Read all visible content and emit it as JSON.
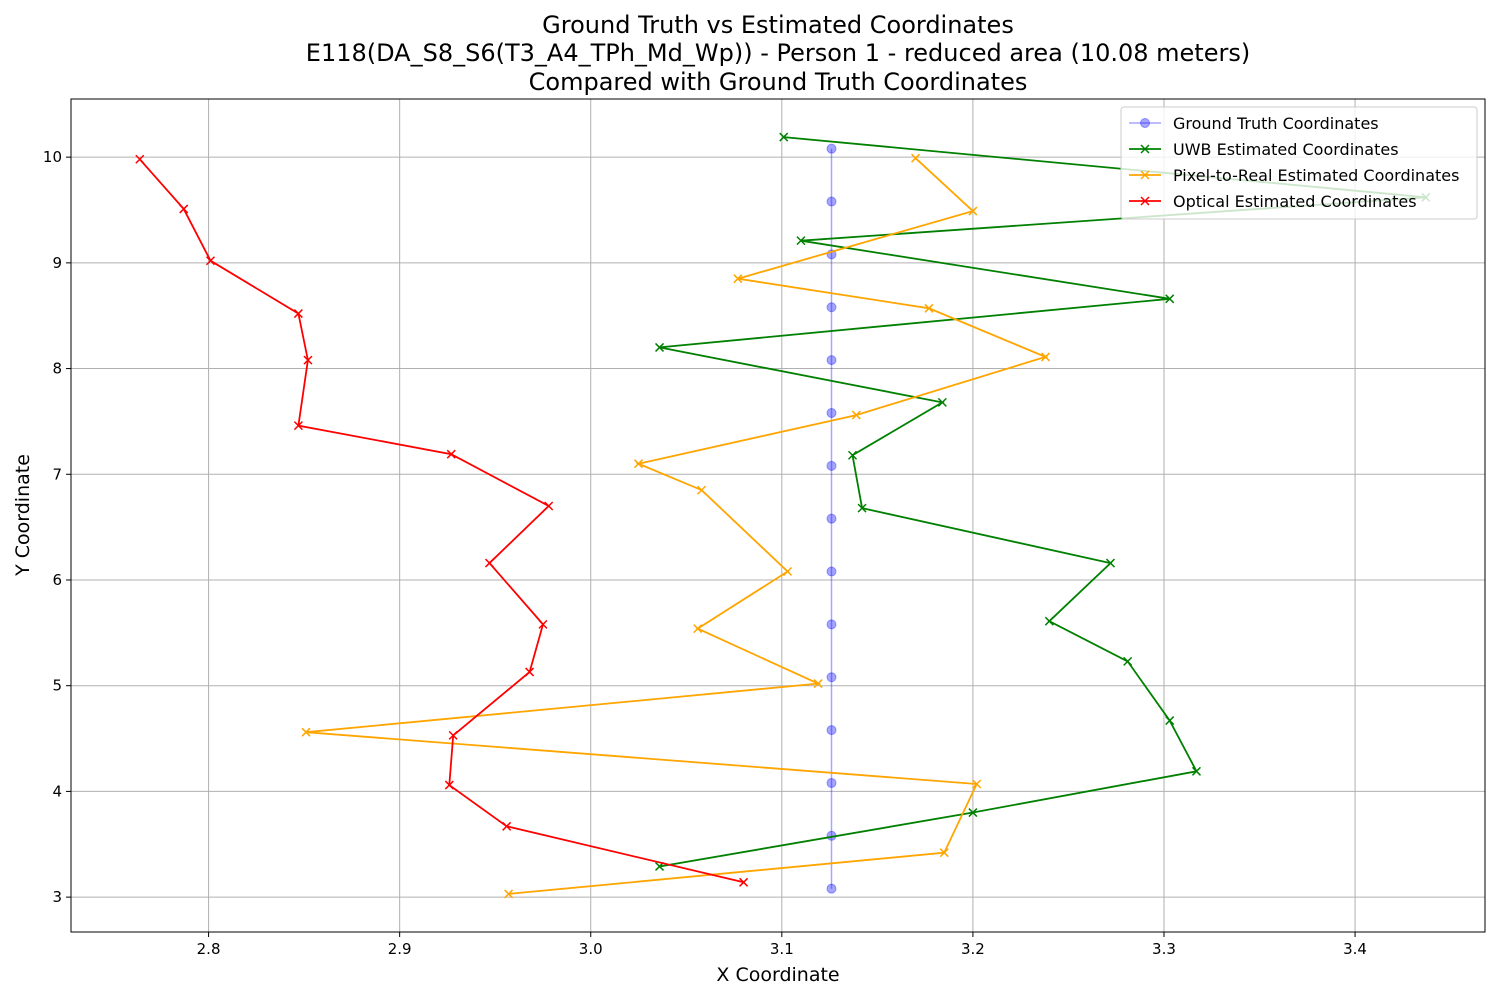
{
  "chart_data": {
    "type": "line",
    "title_lines": [
      "Ground Truth vs Estimated Coordinates",
      "E118(DA_S8_S6(T3_A4_TPh_Md_Wp)) - Person 1 - reduced area (10.08 meters)",
      "Compared with Ground Truth Coordinates"
    ],
    "xlabel": "X Coordinate",
    "ylabel": "Y Coordinate",
    "xlim": [
      2.728,
      3.468
    ],
    "ylim": [
      2.67,
      10.55
    ],
    "xticks": [
      2.8,
      2.9,
      3.0,
      3.1,
      3.2,
      3.3,
      3.4
    ],
    "yticks": [
      3,
      4,
      5,
      6,
      7,
      8,
      9,
      10
    ],
    "xtick_labels": [
      "2.8",
      "2.9",
      "3.0",
      "3.1",
      "3.2",
      "3.3",
      "3.4"
    ],
    "ytick_labels": [
      "3",
      "4",
      "5",
      "6",
      "7",
      "8",
      "9",
      "10"
    ],
    "grid": true,
    "legend_position": "top-right",
    "series": [
      {
        "name": "Ground Truth Coordinates",
        "color": "#0000ff",
        "marker": "circle",
        "points": [
          [
            3.126,
            10.08
          ],
          [
            3.126,
            9.58
          ],
          [
            3.126,
            9.08
          ],
          [
            3.126,
            8.58
          ],
          [
            3.126,
            8.08
          ],
          [
            3.126,
            7.58
          ],
          [
            3.126,
            7.08
          ],
          [
            3.126,
            6.58
          ],
          [
            3.126,
            6.08
          ],
          [
            3.126,
            5.58
          ],
          [
            3.126,
            5.08
          ],
          [
            3.126,
            4.58
          ],
          [
            3.126,
            4.08
          ],
          [
            3.126,
            3.58
          ],
          [
            3.126,
            3.08
          ]
        ]
      },
      {
        "name": "UWB Estimated Coordinates",
        "color": "#008000",
        "marker": "x",
        "points": [
          [
            3.101,
            10.19
          ],
          [
            3.437,
            9.62
          ],
          [
            3.11,
            9.21
          ],
          [
            3.303,
            8.66
          ],
          [
            3.036,
            8.2
          ],
          [
            3.184,
            7.68
          ],
          [
            3.137,
            7.18
          ],
          [
            3.142,
            6.68
          ],
          [
            3.272,
            6.16
          ],
          [
            3.24,
            5.61
          ],
          [
            3.281,
            5.23
          ],
          [
            3.303,
            4.67
          ],
          [
            3.317,
            4.19
          ],
          [
            3.2,
            3.8
          ],
          [
            3.036,
            3.29
          ]
        ]
      },
      {
        "name": "Pixel-to-Real Estimated Coordinates",
        "color": "#ffa500",
        "marker": "x",
        "points": [
          [
            3.17,
            9.99
          ],
          [
            3.2,
            9.49
          ],
          [
            3.077,
            8.85
          ],
          [
            3.177,
            8.57
          ],
          [
            3.238,
            8.11
          ],
          [
            3.139,
            7.56
          ],
          [
            3.025,
            7.1
          ],
          [
            3.058,
            6.85
          ],
          [
            3.103,
            6.08
          ],
          [
            3.056,
            5.54
          ],
          [
            3.119,
            5.02
          ],
          [
            2.851,
            4.56
          ],
          [
            3.202,
            4.07
          ],
          [
            3.185,
            3.42
          ],
          [
            2.957,
            3.03
          ]
        ]
      },
      {
        "name": "Optical Estimated Coordinates",
        "color": "#ff0000",
        "marker": "x",
        "points": [
          [
            2.764,
            9.98
          ],
          [
            2.787,
            9.51
          ],
          [
            2.801,
            9.02
          ],
          [
            2.847,
            8.52
          ],
          [
            2.852,
            8.08
          ],
          [
            2.847,
            7.46
          ],
          [
            2.927,
            7.19
          ],
          [
            2.978,
            6.7
          ],
          [
            2.947,
            6.16
          ],
          [
            2.975,
            5.58
          ],
          [
            2.968,
            5.13
          ],
          [
            2.928,
            4.53
          ],
          [
            2.926,
            4.06
          ],
          [
            2.956,
            3.67
          ],
          [
            3.08,
            3.14
          ]
        ]
      }
    ]
  }
}
